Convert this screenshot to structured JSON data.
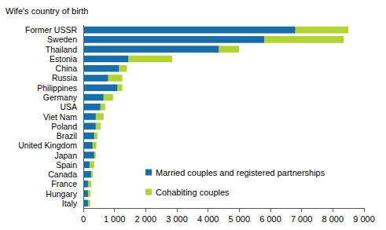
{
  "chart_data": {
    "type": "bar",
    "orientation": "horizontal",
    "stacked": true,
    "ylabel": "Wife's country of birth",
    "categories": [
      "Former USSR",
      "Sweden",
      "Thailand",
      "Estonia",
      "China",
      "Russia",
      "Philippines",
      "Germany",
      "USA",
      "Viet Nam",
      "Poland",
      "Brazil",
      "United Kingdom",
      "Japan",
      "Spain",
      "Canada",
      "France",
      "Hungary",
      "Italy"
    ],
    "series": [
      {
        "name": "Married couples and registered partnerships",
        "color": "#1a6ea8",
        "values": [
          6800,
          5800,
          4350,
          1450,
          1150,
          800,
          1100,
          650,
          550,
          400,
          400,
          350,
          300,
          350,
          200,
          250,
          150,
          150,
          150
        ]
      },
      {
        "name": "Cohabiting couples",
        "color": "#b3d335",
        "values": [
          1700,
          2550,
          650,
          1400,
          250,
          450,
          150,
          300,
          150,
          250,
          150,
          100,
          120,
          50,
          150,
          50,
          100,
          80,
          70
        ]
      }
    ],
    "xlim": [
      0,
      9000
    ],
    "xticks": [
      0,
      {
        "value": 1000,
        "label": "1 000"
      },
      {
        "value": 2000,
        "label": "2 000"
      },
      {
        "value": 3000,
        "label": "3 000"
      },
      {
        "value": 4000,
        "label": "4 000"
      },
      {
        "value": 5000,
        "label": "5 000"
      },
      {
        "value": 6000,
        "label": "6 000"
      },
      {
        "value": 7000,
        "label": "7 000"
      },
      {
        "value": 8000,
        "label": "8 000"
      },
      {
        "value": 9000,
        "label": "9 000"
      }
    ],
    "grid": false,
    "legend": "lower right"
  }
}
